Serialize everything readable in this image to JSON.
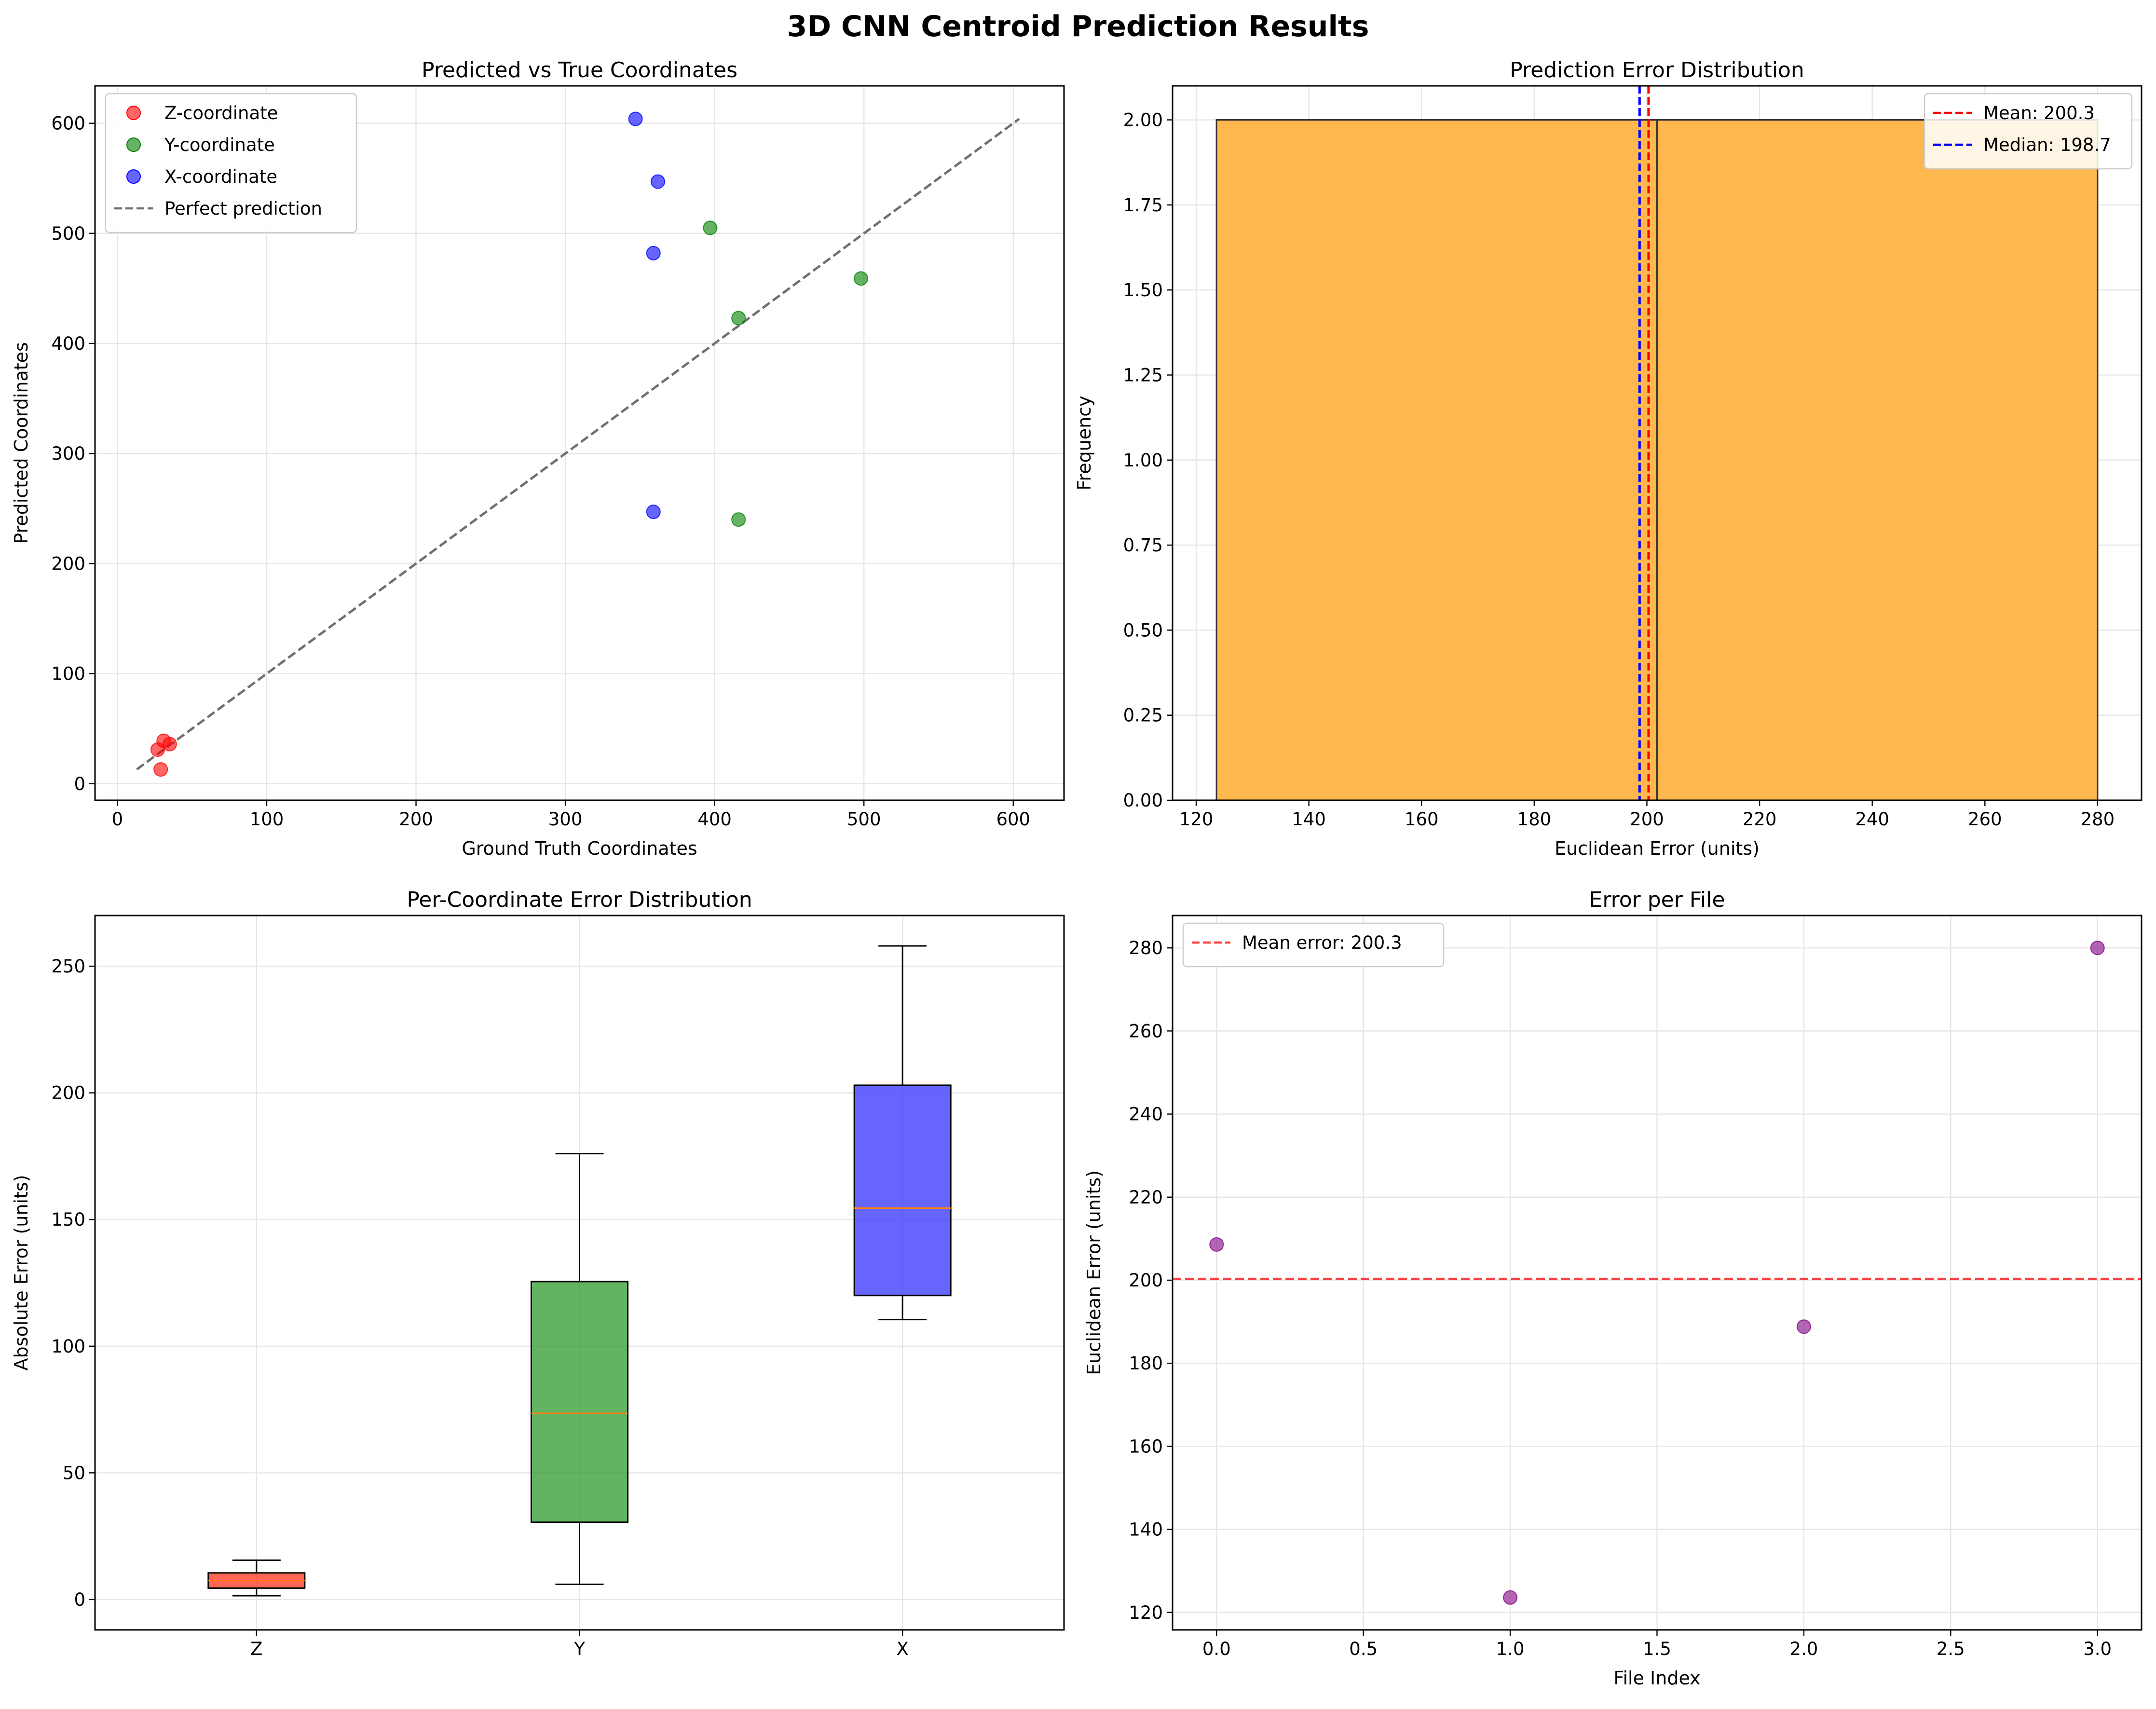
{
  "suptitle": "3D CNN Centroid Prediction Results",
  "chart_data": [
    {
      "type": "scatter",
      "title": "Predicted vs True Coordinates",
      "xlabel": "Ground Truth Coordinates",
      "ylabel": "Predicted Coordinates",
      "xlim": [
        -15,
        634
      ],
      "ylim": [
        -15,
        634
      ],
      "xticks": [
        0,
        100,
        200,
        300,
        400,
        500,
        600
      ],
      "yticks": [
        0,
        100,
        200,
        300,
        400,
        500,
        600
      ],
      "grid": true,
      "legend_position": "upper left",
      "series": [
        {
          "name": "Z-coordinate",
          "color": "#ff0000",
          "points": [
            [
              31,
              39
            ],
            [
              35,
              36
            ],
            [
              27,
              31
            ],
            [
              29,
              13
            ]
          ]
        },
        {
          "name": "Y-coordinate",
          "color": "#008000",
          "points": [
            [
              397,
              505
            ],
            [
              498,
              459
            ],
            [
              416,
              423
            ],
            [
              416,
              240
            ]
          ]
        },
        {
          "name": "X-coordinate",
          "color": "#0000ff",
          "points": [
            [
              347,
              604
            ],
            [
              362,
              547
            ],
            [
              359,
              482
            ],
            [
              359,
              247
            ]
          ]
        }
      ],
      "reference_line": {
        "name": "Perfect prediction",
        "color": "#707070",
        "style": "dashed",
        "from": [
          13,
          13
        ],
        "to": [
          604,
          604
        ]
      }
    },
    {
      "type": "histogram",
      "title": "Prediction Error Distribution",
      "xlabel": "Euclidean Error (units)",
      "ylabel": "Frequency",
      "xlim": [
        115.8,
        287.8
      ],
      "ylim": [
        0,
        2.1
      ],
      "xticks": [
        120,
        140,
        160,
        180,
        200,
        220,
        240,
        260,
        280
      ],
      "yticks": [
        "0.00",
        "0.25",
        "0.50",
        "0.75",
        "1.00",
        "1.25",
        "1.50",
        "1.75",
        "2.00"
      ],
      "bar_color": "#ffb84d",
      "bins": [
        {
          "start": 123.6,
          "end": 201.8,
          "count": 2
        },
        {
          "start": 201.8,
          "end": 280.0,
          "count": 2
        }
      ],
      "vlines": [
        {
          "label": "Mean: 200.3",
          "value": 200.3,
          "color": "#ff0000"
        },
        {
          "label": "Median: 198.7",
          "value": 198.7,
          "color": "#0000ff"
        }
      ],
      "grid": true,
      "legend_position": "upper right"
    },
    {
      "type": "box",
      "title": "Per-Coordinate Error Distribution",
      "xlabel": "",
      "ylabel": "Absolute Error (units)",
      "ylim": [
        -12,
        270
      ],
      "yticks": [
        0,
        50,
        100,
        150,
        200,
        250
      ],
      "categories": [
        "Z",
        "Y",
        "X"
      ],
      "boxes": [
        {
          "label": "Z",
          "color": "#ff3319",
          "whislo": 1.5,
          "q1": 4.5,
          "median": 7.5,
          "q3": 10.5,
          "whishi": 15.5
        },
        {
          "label": "Y",
          "color": "#2e9a2e",
          "whislo": 6,
          "q1": 30.5,
          "median": 73.5,
          "q3": 125.5,
          "whishi": 176
        },
        {
          "label": "X",
          "color": "#3333ff",
          "whislo": 110.5,
          "q1": 120,
          "median": 154.5,
          "q3": 203,
          "whishi": 258
        }
      ],
      "grid": true
    },
    {
      "type": "scatter",
      "title": "Error per File",
      "xlabel": "File Index",
      "ylabel": "Euclidean Error (units)",
      "xlim": [
        -0.15,
        3.15
      ],
      "ylim": [
        115.8,
        287.8
      ],
      "xticks": [
        "0.0",
        "0.5",
        "1.0",
        "1.5",
        "2.0",
        "2.5",
        "3.0"
      ],
      "yticks": [
        120,
        140,
        160,
        180,
        200,
        220,
        240,
        260,
        280
      ],
      "series": [
        {
          "name": "",
          "color": "#800080",
          "points": [
            [
              0,
              208.6
            ],
            [
              1,
              123.6
            ],
            [
              2,
              188.8
            ],
            [
              3,
              280.0
            ]
          ]
        }
      ],
      "hline": {
        "label": "Mean error: 200.3",
        "value": 200.3,
        "color": "#ff0000"
      },
      "grid": true,
      "legend_position": "upper left"
    }
  ]
}
